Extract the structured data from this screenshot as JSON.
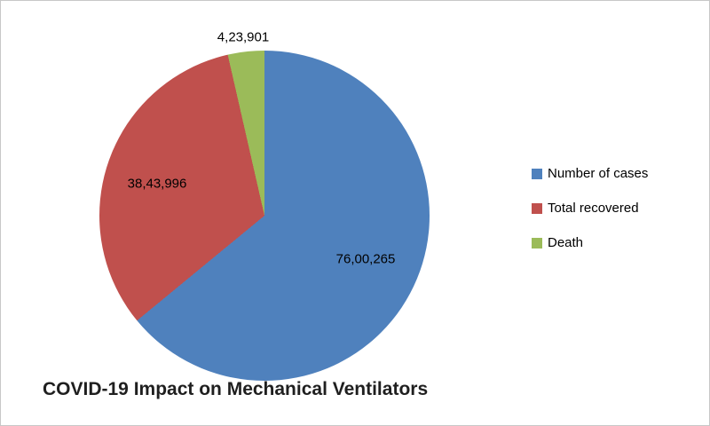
{
  "chart_data": {
    "type": "pie",
    "title": "COVID-19 Impact on Mechanical Ventilators",
    "categories": [
      "Number of cases",
      "Total recovered",
      "Death"
    ],
    "values": [
      7600265,
      3843996,
      423901
    ],
    "value_labels": [
      "76,00,265",
      "38,43,996",
      "4,23,901"
    ],
    "colors": [
      "#4F81BD",
      "#C0504D",
      "#9BBB59"
    ],
    "start_angle_deg": 0,
    "direction": "clockwise",
    "legend_position": "right",
    "background": "#FFFFFF"
  }
}
